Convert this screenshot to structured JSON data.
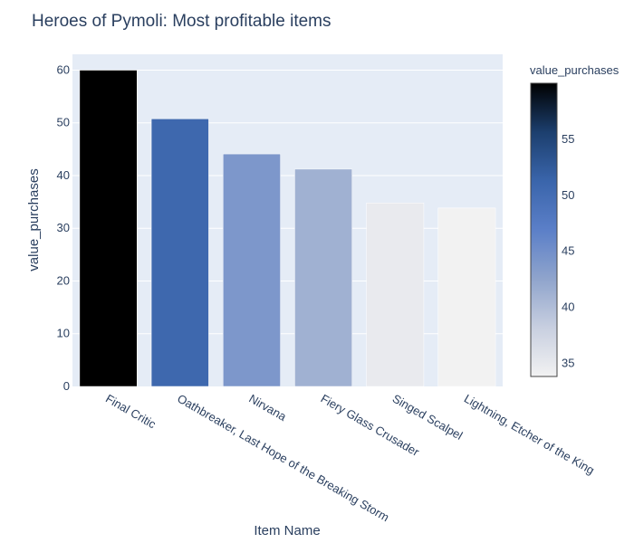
{
  "chart_data": {
    "type": "bar",
    "title": "Heroes of Pymoli: Most profitable items",
    "xlabel": "Item Name",
    "ylabel": "value_purchases",
    "categories": [
      "Final Critic",
      "Oathbreaker, Last Hope of the Breaking Storm",
      "Nirvana",
      "Fiery Glass Crusader",
      "Singed Scalpel",
      "Lightning, Etcher of the King"
    ],
    "values": [
      59.99,
      50.76,
      44.1,
      41.22,
      34.8,
      33.84
    ],
    "ylim": [
      0,
      63
    ],
    "yticks": [
      0,
      10,
      20,
      30,
      40,
      50,
      60
    ],
    "grid": true,
    "colorbar": {
      "title": "value_purchases",
      "range": [
        33.84,
        59.99
      ],
      "ticks": [
        35,
        40,
        45,
        50,
        55
      ],
      "colorscale": [
        "#f2f2f2",
        "#c8cfe0",
        "#8fa4cc",
        "#5b7fc8",
        "#3a65ab",
        "#1c3f6e",
        "#000000"
      ]
    }
  }
}
